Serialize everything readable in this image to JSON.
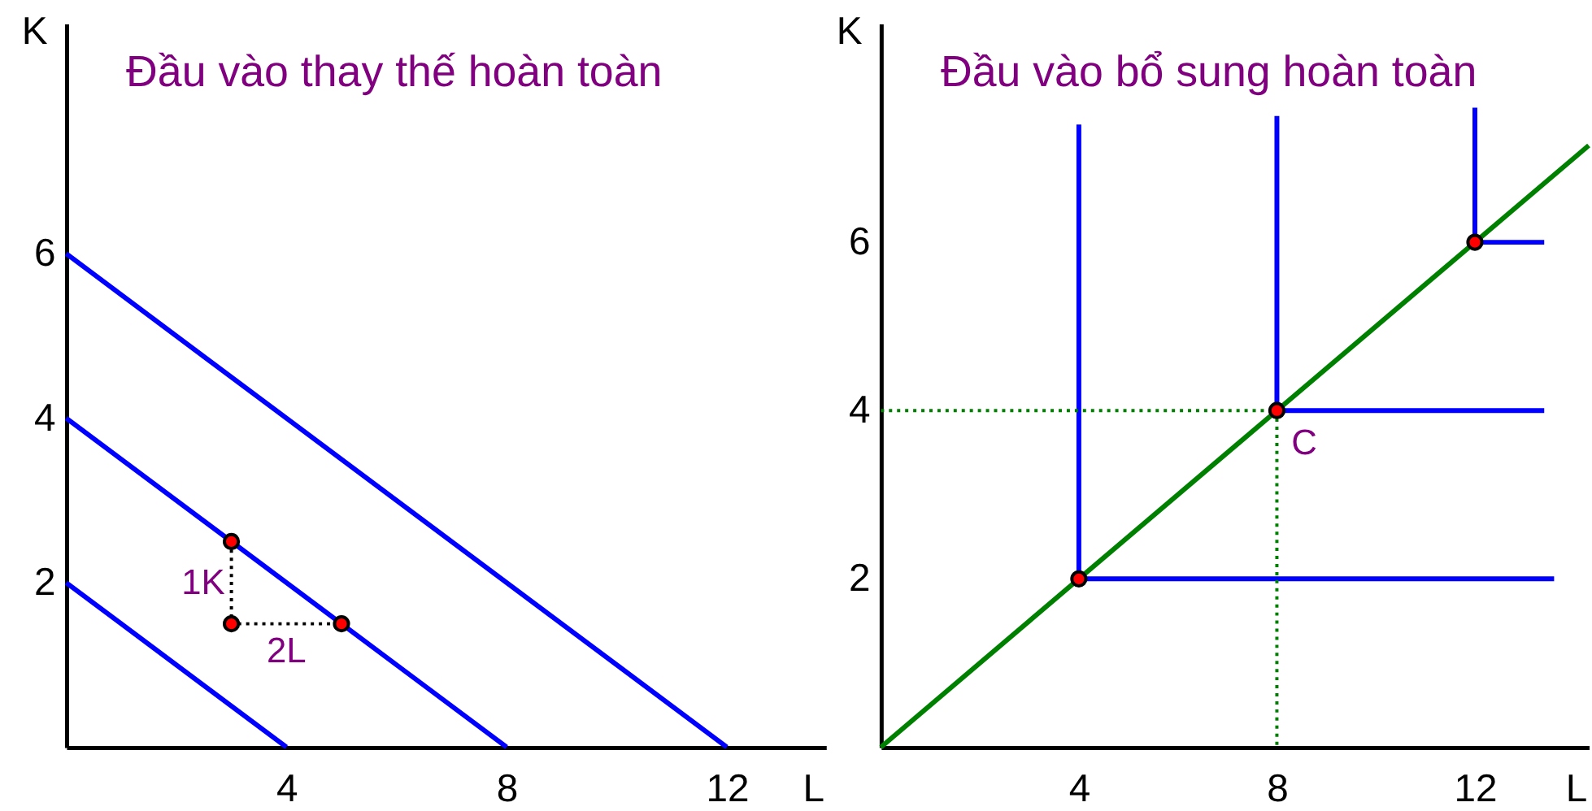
{
  "chart_data": [
    {
      "type": "line",
      "title": "Đầu vào thay thế hoàn toàn",
      "xlabel": "L",
      "ylabel": "K",
      "xlim": [
        0,
        13.8
      ],
      "ylim": [
        0,
        8.8
      ],
      "xticks": [
        4,
        8,
        12
      ],
      "yticks": [
        2,
        4,
        6
      ],
      "series": [
        {
          "color": "#0000ff",
          "x": [
            0,
            4
          ],
          "values": [
            2,
            0
          ]
        },
        {
          "color": "#0000ff",
          "x": [
            0,
            8
          ],
          "values": [
            4,
            0
          ]
        },
        {
          "color": "#0000ff",
          "x": [
            0,
            12
          ],
          "values": [
            6,
            0
          ]
        },
        {
          "color": "#000000",
          "line_style": "dotted",
          "x": [
            3,
            3,
            5
          ],
          "values": [
            2.5,
            1.5,
            1.5
          ]
        },
        {
          "type": "scatter",
          "color": "#ff0000",
          "marker": "circle",
          "x": [
            3,
            3,
            5
          ],
          "values": [
            2.5,
            1.5,
            1.5
          ]
        }
      ],
      "annotations": [
        {
          "text": "1K",
          "x": 3,
          "y": 2
        },
        {
          "text": "2L",
          "x": 4,
          "y": 1.5
        }
      ]
    },
    {
      "type": "line",
      "title": "Đầu vào bổ sung hoàn toàn",
      "xlabel": "L",
      "ylabel": "K",
      "xlim": [
        0,
        14.3
      ],
      "ylim": [
        0,
        8.6
      ],
      "xticks": [
        4,
        8,
        12
      ],
      "yticks": [
        2,
        4,
        6
      ],
      "series": [
        {
          "color": "#0000ff",
          "x": [
            4,
            4,
            13.6
          ],
          "values": [
            7.4,
            2,
            2
          ]
        },
        {
          "color": "#0000ff",
          "x": [
            8,
            8,
            13.4
          ],
          "values": [
            7.5,
            4,
            4
          ]
        },
        {
          "color": "#0000ff",
          "x": [
            12,
            12,
            13.4
          ],
          "values": [
            7.6,
            6,
            6
          ]
        },
        {
          "color": "#008000",
          "x": [
            0,
            14.3
          ],
          "values": [
            0,
            7.15
          ]
        },
        {
          "color": "#008000",
          "line_style": "dotted",
          "x": [
            0,
            8,
            8
          ],
          "values": [
            4,
            4,
            0
          ]
        },
        {
          "type": "scatter",
          "color": "#ff0000",
          "marker": "circle",
          "x": [
            4,
            8,
            12
          ],
          "values": [
            2,
            4,
            6
          ]
        }
      ],
      "annotations": [
        {
          "text": "C",
          "x": 8,
          "y": 4
        }
      ]
    }
  ]
}
